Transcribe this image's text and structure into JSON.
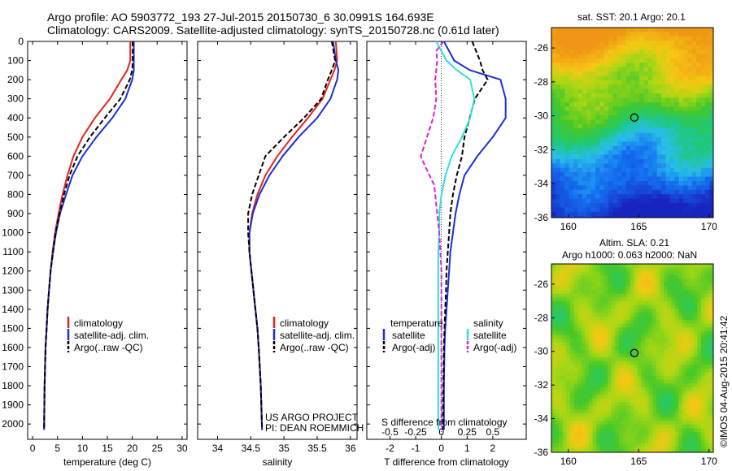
{
  "header": {
    "title_line1": "Argo profile: AO 5903772_193 27-Jul-2015 20150730_6 30.0991S 164.693E",
    "title_line2": "Climatology: CARS2009. Satellite-adjusted climatology: synTS_20150728.nc (0.61d later)"
  },
  "colors": {
    "climatology": "#e8231e",
    "satellite": "#1a2fd6",
    "argo": "#000000",
    "sal_satellite": "#2ee0e0",
    "sal_argo": "#e020d0"
  },
  "chart_data": [
    {
      "type": "line",
      "id": "temperature",
      "xlabel": "temperature (deg C)",
      "ylabel": "",
      "xlim": [
        -1,
        31
      ],
      "ylim": [
        2080,
        0
      ],
      "xticks": [
        0,
        5,
        10,
        15,
        20,
        25,
        30
      ],
      "yticks": [
        0,
        100,
        200,
        300,
        400,
        500,
        600,
        700,
        800,
        900,
        1000,
        1100,
        1200,
        1300,
        1400,
        1500,
        1600,
        1700,
        1800,
        1900,
        2000
      ],
      "legend": [
        "climatology",
        "satellite-adj. clim.",
        "Argo(..raw -QC)"
      ],
      "series": [
        {
          "name": "climatology",
          "style": "solid",
          "color": "#e8231e",
          "x": [
            19.6,
            19.6,
            19.0,
            17.8,
            15.5,
            12.5,
            10.0,
            8.2,
            7.0,
            6.0,
            5.2,
            4.5,
            4.0,
            3.6,
            3.3,
            3.0,
            2.8,
            2.6,
            2.4,
            2.3
          ],
          "y": [
            0,
            100,
            150,
            200,
            300,
            400,
            500,
            600,
            700,
            800,
            900,
            1000,
            1100,
            1200,
            1300,
            1400,
            1500,
            1600,
            1800,
            2030
          ]
        },
        {
          "name": "satellite-adj. clim.",
          "style": "solid",
          "color": "#1a2fd6",
          "x": [
            20.3,
            20.3,
            20.3,
            20.0,
            18.6,
            16.0,
            12.8,
            10.0,
            8.0,
            6.7,
            5.5,
            4.7,
            4.1,
            3.6,
            3.3,
            3.0,
            2.8,
            2.6,
            2.4,
            2.3
          ],
          "y": [
            0,
            100,
            150,
            200,
            300,
            400,
            500,
            600,
            700,
            800,
            900,
            1000,
            1100,
            1200,
            1300,
            1400,
            1500,
            1600,
            1800,
            2030
          ]
        },
        {
          "name": "Argo(..raw -QC)",
          "style": "dashed",
          "color": "#000000",
          "x": [
            20.1,
            20.1,
            20.0,
            19.5,
            17.6,
            14.5,
            11.5,
            9.0,
            7.4,
            6.3,
            5.4,
            4.6,
            4.1,
            3.6,
            3.3,
            3.0,
            2.8,
            2.6,
            2.4,
            2.3
          ],
          "y": [
            0,
            100,
            150,
            200,
            300,
            400,
            500,
            600,
            700,
            800,
            900,
            1000,
            1100,
            1200,
            1300,
            1400,
            1500,
            1600,
            1800,
            2030
          ]
        }
      ]
    },
    {
      "type": "line",
      "id": "salinity",
      "xlabel": "salinity",
      "xlim": [
        33.7,
        36.1
      ],
      "ylim": [
        2080,
        0
      ],
      "xticks": [
        34,
        34.5,
        35,
        35.5,
        36
      ],
      "legend": [
        "climatology",
        "satellite-adj. clim.",
        "Argo(..raw -QC)"
      ],
      "annotations": [
        "US ARGO PROJECT",
        "PI: DEAN ROEMMICH"
      ],
      "series": [
        {
          "name": "climatology",
          "style": "solid",
          "color": "#e8231e",
          "x": [
            35.78,
            35.8,
            35.76,
            35.7,
            35.58,
            35.36,
            35.12,
            34.9,
            34.72,
            34.6,
            34.52,
            34.48,
            34.48,
            34.51,
            34.54,
            34.57,
            34.6,
            34.62,
            34.65,
            34.67
          ],
          "y": [
            0,
            100,
            150,
            200,
            300,
            400,
            500,
            600,
            700,
            800,
            900,
            1000,
            1100,
            1200,
            1300,
            1400,
            1500,
            1600,
            1800,
            2030
          ]
        },
        {
          "name": "satellite-adj. clim.",
          "style": "solid",
          "color": "#1a2fd6",
          "x": [
            35.74,
            35.78,
            35.82,
            35.8,
            35.7,
            35.5,
            35.22,
            34.98,
            34.78,
            34.63,
            34.53,
            34.48,
            34.48,
            34.51,
            34.54,
            34.57,
            34.6,
            34.62,
            34.65,
            34.67
          ],
          "y": [
            0,
            100,
            150,
            200,
            300,
            400,
            500,
            600,
            700,
            800,
            900,
            1000,
            1100,
            1200,
            1300,
            1400,
            1500,
            1600,
            1800,
            2030
          ]
        },
        {
          "name": "Argo(..raw -QC)",
          "style": "dashed",
          "color": "#000000",
          "x": [
            35.72,
            35.77,
            35.72,
            35.66,
            35.56,
            35.3,
            35.0,
            34.72,
            34.62,
            34.52,
            34.46,
            34.46,
            34.48,
            34.51,
            34.54,
            34.57,
            34.6,
            34.62,
            34.65,
            34.67
          ],
          "y": [
            0,
            100,
            150,
            200,
            300,
            400,
            500,
            600,
            700,
            800,
            900,
            1000,
            1100,
            1200,
            1300,
            1400,
            1500,
            1600,
            1800,
            2030
          ]
        }
      ]
    },
    {
      "type": "line",
      "id": "difference",
      "xlabel": "T difference from climatology",
      "xlabel_top": "S difference from climatology",
      "xlim": [
        -2.9,
        3.3
      ],
      "ylim": [
        2080,
        0
      ],
      "xticks": [
        -2,
        -1,
        0,
        1,
        2
      ],
      "xtick_labels": [
        "-2",
        "-1",
        "0",
        "1",
        "2"
      ],
      "sticks": [
        -0.5,
        -0.25,
        0,
        0.25,
        0.5
      ],
      "stick_labels": [
        "-0.5",
        "-0.25",
        "0",
        "0.25",
        "0.5"
      ],
      "legend_left": {
        "heading": "temperature",
        "items": [
          "satellite",
          "Argo(-adj)"
        ]
      },
      "legend_right": {
        "heading": "salinity",
        "items": [
          "satellite",
          "Argo(-adj)"
        ]
      },
      "series": [
        {
          "name": "satellite",
          "quantity": "T",
          "style": "solid",
          "color": "#1a2fd6",
          "x": [
            0.1,
            0.5,
            1.1,
            2.3,
            2.5,
            2.5,
            2.0,
            1.4,
            0.9,
            0.7,
            0.55,
            0.45,
            0.35,
            0.3,
            0.25,
            0.2,
            0.15,
            0.12,
            0.1,
            0.1
          ],
          "y": [
            0,
            100,
            150,
            200,
            300,
            400,
            500,
            600,
            700,
            800,
            900,
            1000,
            1100,
            1200,
            1300,
            1400,
            1500,
            1600,
            1800,
            2030
          ]
        },
        {
          "name": "Argo(-adj)",
          "quantity": "T",
          "style": "dashed",
          "color": "#000000",
          "x": [
            1.2,
            1.5,
            1.6,
            1.8,
            1.3,
            1.1,
            0.9,
            0.8,
            0.6,
            0.45,
            0.35,
            0.3,
            0.25,
            0.2,
            0.18,
            0.15,
            0.12,
            0.1,
            0.08,
            0.05
          ],
          "y": [
            0,
            100,
            150,
            200,
            300,
            400,
            500,
            600,
            700,
            800,
            900,
            1000,
            1100,
            1200,
            1300,
            1400,
            1500,
            1600,
            1800,
            2030
          ]
        },
        {
          "name": "satellite",
          "quantity": "S",
          "style": "solid",
          "color": "#2ee0e0",
          "x": [
            -0.05,
            0.05,
            0.15,
            0.28,
            0.32,
            0.28,
            0.2,
            0.1,
            0.04,
            0.0,
            -0.02,
            -0.02,
            -0.03,
            -0.03,
            -0.03,
            -0.03,
            -0.03,
            -0.03,
            -0.03,
            -0.03
          ],
          "y": [
            0,
            100,
            150,
            200,
            300,
            400,
            500,
            600,
            700,
            800,
            900,
            1000,
            1100,
            1200,
            1300,
            1400,
            1500,
            1600,
            1800,
            2030
          ]
        },
        {
          "name": "Argo(-adj)",
          "quantity": "S",
          "style": "dashed",
          "color": "#e020d0",
          "x": [
            0.02,
            -0.05,
            -0.04,
            -0.06,
            -0.05,
            -0.08,
            -0.14,
            -0.2,
            -0.16,
            -0.07,
            -0.04,
            -0.02,
            -0.01,
            0.0,
            0.0,
            0.0,
            0.0,
            0.0,
            0.0,
            0.0
          ],
          "y": [
            0,
            50,
            100,
            200,
            300,
            400,
            500,
            600,
            650,
            750,
            900,
            1000,
            1100,
            1200,
            1300,
            1400,
            1500,
            1600,
            1800,
            2030
          ]
        }
      ]
    },
    {
      "type": "heatmap",
      "id": "sst_map",
      "title": "sat. SST: 20.1  Argo: 20.1",
      "xlim": [
        158.8,
        170.3
      ],
      "ylim": [
        -36,
        -24.8
      ],
      "xticks": [
        160,
        165,
        170
      ],
      "yticks": [
        -26,
        -28,
        -30,
        -32,
        -34,
        -36
      ],
      "marker": {
        "lon": 164.693,
        "lat": -30.0991
      }
    },
    {
      "type": "heatmap",
      "id": "sla_map",
      "title_line1": "Altim. SLA: 0.21",
      "title_line2": "Argo h1000: 0.063 h2000: NaN",
      "xlim": [
        158.8,
        170.3
      ],
      "ylim": [
        -36,
        -24.8
      ],
      "xticks": [
        160,
        165,
        170
      ],
      "yticks": [
        -26,
        -28,
        -30,
        -32,
        -34,
        -36
      ],
      "marker": {
        "lon": 164.693,
        "lat": -30.0991
      }
    }
  ],
  "footer": {
    "watermark": "©IMOS 04-Aug-2015 20:41:42"
  }
}
